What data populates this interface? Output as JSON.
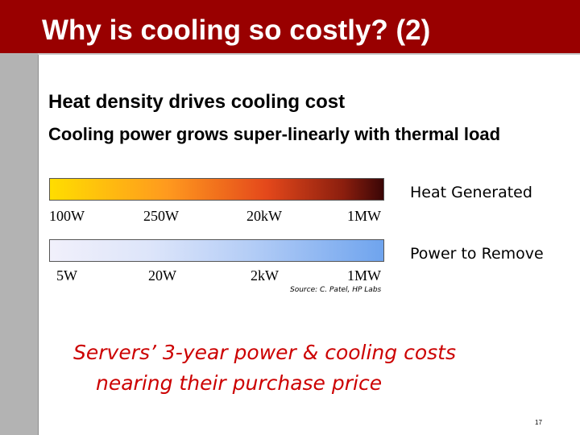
{
  "slide": {
    "title": "Why is cooling so costly? (2)",
    "heading": "Heat density drives cooling cost",
    "subheading": "Cooling power grows super-linearly with thermal load",
    "heat_label": "Heat Generated",
    "heat_ticks": [
      "100W",
      "250W",
      "20kW",
      "1MW"
    ],
    "power_label": "Power to Remove",
    "power_ticks": [
      "5W",
      "20W",
      "2kW",
      "1MW"
    ],
    "source": "Source: C. Patel, HP Labs",
    "callout_line1": "Servers’ 3-year power & cooling costs",
    "callout_line2": "nearing their purchase price",
    "page_number": "17"
  },
  "colors": {
    "title_bar": "#990000",
    "side_bar": "#b3b3b3",
    "callout": "#cc0000",
    "heat_gradient": [
      "#ffdd00",
      "#ff9a1e",
      "#e4481b",
      "#8b1e0e",
      "#3a0606"
    ],
    "power_gradient": [
      "#f1f0fb",
      "#dde5fa",
      "#b4cdf6",
      "#6fa4ee"
    ]
  }
}
